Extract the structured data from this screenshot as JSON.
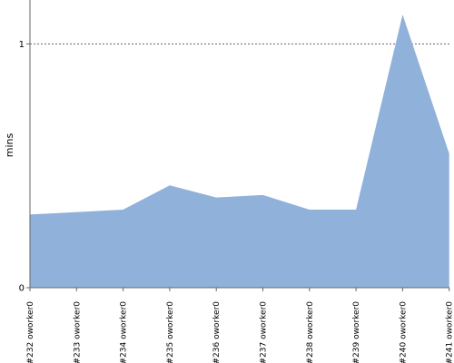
{
  "chart_data": {
    "type": "area",
    "ylabel": "mins",
    "ylim": [
      0,
      1.18
    ],
    "yticks": [
      0,
      1
    ],
    "ytick_labels": [
      "0",
      "1"
    ],
    "categories": [
      "#232 oworker0",
      "#233 oworker0",
      "#234 oworker0",
      "#235 oworker0",
      "#236 oworker0",
      "#237 oworker0",
      "#238 oworker0",
      "#239 oworker0",
      "#240 oworker0",
      "#241 oworker0"
    ],
    "series": [
      {
        "values": [
          0.3,
          0.31,
          0.32,
          0.42,
          0.37,
          0.38,
          0.32,
          0.32,
          1.12,
          0.55
        ]
      }
    ],
    "grid": "dashed line at y=1",
    "colors": {
      "area": "#8fb1da",
      "axis": "#666666",
      "grid": "#666666"
    }
  }
}
